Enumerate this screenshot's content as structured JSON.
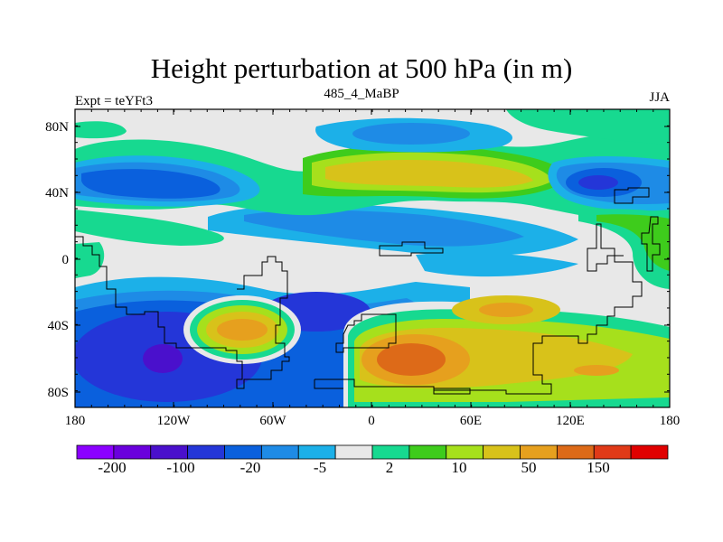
{
  "title": "Height perturbation at 500 hPa (in m)",
  "subtitle": "485_4_MaBP",
  "left_label": "Expt = teYFt3",
  "right_label": "JJA",
  "y_ticks": [
    "80N",
    "40N",
    "0",
    "40S",
    "80S"
  ],
  "x_ticks": [
    "180",
    "120W",
    "60W",
    "0",
    "60E",
    "120E",
    "180"
  ],
  "colorbar": {
    "colors": [
      "#8b00ff",
      "#6a00dd",
      "#4a10cc",
      "#2436d8",
      "#0a60dd",
      "#1e8be6",
      "#1cb0e8",
      "#e8e8e8",
      "#17d990",
      "#3ecc1c",
      "#a6e01c",
      "#d8c21a",
      "#e6a01e",
      "#dd6a18",
      "#e03a18",
      "#e00000"
    ],
    "labels": [
      "-200",
      "-100",
      "-20",
      "-5",
      "2",
      "10",
      "50",
      "150"
    ]
  },
  "map_colors": {
    "background": "#e8e8e8",
    "neg_light": "#1cb0e8",
    "neg_mid": "#1e8be6",
    "neg_strong": "#0a60dd",
    "neg_deep": "#2436d8",
    "neg_deeper": "#4a10cc",
    "pos_light": "#17d990",
    "pos_mid": "#3ecc1c",
    "pos_green": "#a6e01c",
    "pos_yellow": "#d8c21a",
    "pos_orange": "#e6a01e",
    "pos_dark": "#dd6a18"
  }
}
